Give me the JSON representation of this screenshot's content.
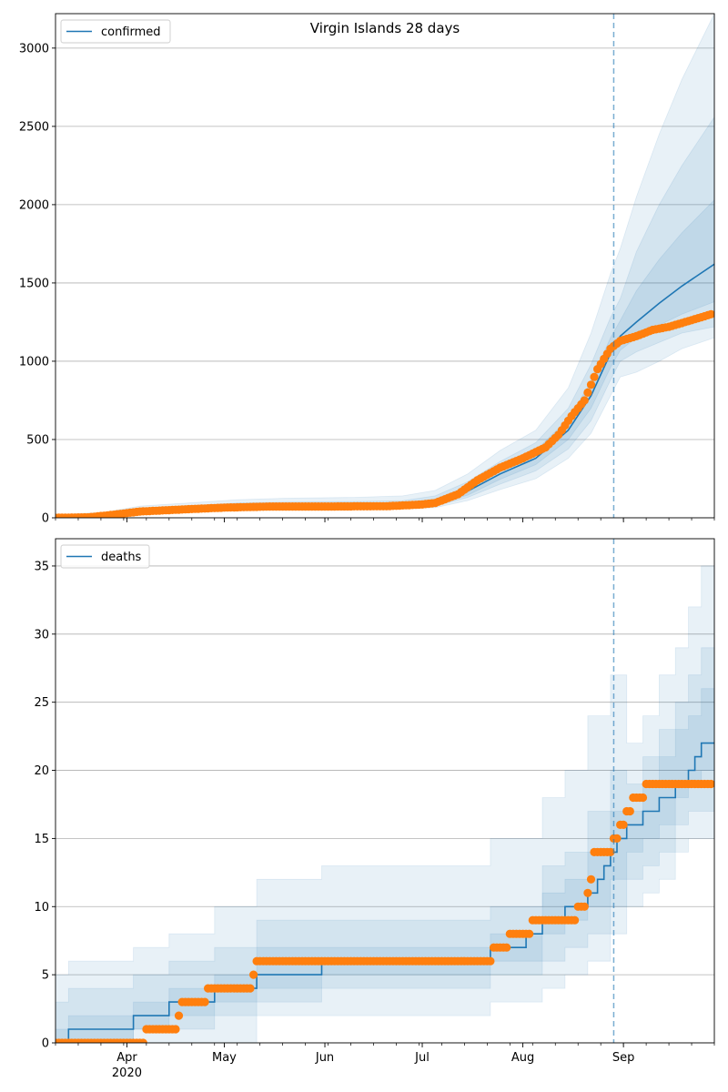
{
  "chart_data": [
    {
      "type": "line",
      "title": "Virgin Islands 28 days",
      "legend": "confirmed",
      "legend_placement": "top-left",
      "grid": "horizontal",
      "x_start": "2020-03-10",
      "x_end": "2020-09-29",
      "forecast_start": "2020-08-29",
      "ylim": [
        0,
        3220
      ],
      "yticks": [
        0,
        500,
        1000,
        1500,
        2000,
        2500,
        3000
      ],
      "model": [
        [
          "2020-03-10",
          0
        ],
        [
          "2020-03-25",
          10
        ],
        [
          "2020-04-05",
          40
        ],
        [
          "2020-04-20",
          55
        ],
        [
          "2020-05-05",
          70
        ],
        [
          "2020-05-20",
          76
        ],
        [
          "2020-06-10",
          78
        ],
        [
          "2020-06-25",
          82
        ],
        [
          "2020-07-05",
          100
        ],
        [
          "2020-07-15",
          170
        ],
        [
          "2020-07-25",
          280
        ],
        [
          "2020-08-05",
          380
        ],
        [
          "2020-08-15",
          560
        ],
        [
          "2020-08-22",
          780
        ],
        [
          "2020-08-28",
          1050
        ],
        [
          "2020-08-31",
          1160
        ],
        [
          "2020-09-05",
          1250
        ],
        [
          "2020-09-12",
          1370
        ],
        [
          "2020-09-19",
          1480
        ],
        [
          "2020-09-29",
          1620
        ]
      ],
      "bands": [
        [
          [
            "2020-03-10",
            0,
            20
          ],
          [
            "2020-03-25",
            5,
            35
          ],
          [
            "2020-04-05",
            20,
            75
          ],
          [
            "2020-04-20",
            35,
            95
          ],
          [
            "2020-05-05",
            45,
            115
          ],
          [
            "2020-05-20",
            50,
            125
          ],
          [
            "2020-06-10",
            52,
            130
          ],
          [
            "2020-06-25",
            55,
            140
          ],
          [
            "2020-07-05",
            65,
            175
          ],
          [
            "2020-07-15",
            110,
            280
          ],
          [
            "2020-07-25",
            180,
            430
          ],
          [
            "2020-08-05",
            250,
            560
          ],
          [
            "2020-08-15",
            380,
            830
          ],
          [
            "2020-08-22",
            540,
            1180
          ],
          [
            "2020-08-28",
            780,
            1560
          ],
          [
            "2020-08-31",
            900,
            1720
          ],
          [
            "2020-09-05",
            930,
            2050
          ],
          [
            "2020-09-12",
            1000,
            2450
          ],
          [
            "2020-09-19",
            1080,
            2800
          ],
          [
            "2020-09-29",
            1150,
            3220
          ]
        ],
        [
          [
            "2020-03-10",
            0,
            15
          ],
          [
            "2020-03-25",
            6,
            25
          ],
          [
            "2020-04-05",
            25,
            60
          ],
          [
            "2020-04-20",
            40,
            78
          ],
          [
            "2020-05-05",
            52,
            95
          ],
          [
            "2020-05-20",
            58,
            100
          ],
          [
            "2020-06-10",
            60,
            104
          ],
          [
            "2020-06-25",
            63,
            110
          ],
          [
            "2020-07-05",
            75,
            140
          ],
          [
            "2020-07-15",
            130,
            230
          ],
          [
            "2020-07-25",
            215,
            360
          ],
          [
            "2020-08-05",
            300,
            480
          ],
          [
            "2020-08-15",
            440,
            700
          ],
          [
            "2020-08-22",
            620,
            980
          ],
          [
            "2020-08-28",
            880,
            1280
          ],
          [
            "2020-08-31",
            1000,
            1400
          ],
          [
            "2020-09-05",
            1060,
            1700
          ],
          [
            "2020-09-12",
            1120,
            2000
          ],
          [
            "2020-09-19",
            1180,
            2250
          ],
          [
            "2020-09-29",
            1220,
            2560
          ]
        ],
        [
          [
            "2020-03-10",
            0,
            12
          ],
          [
            "2020-03-25",
            7,
            18
          ],
          [
            "2020-04-05",
            30,
            52
          ],
          [
            "2020-04-20",
            46,
            66
          ],
          [
            "2020-05-05",
            60,
            82
          ],
          [
            "2020-05-20",
            66,
            87
          ],
          [
            "2020-06-10",
            68,
            90
          ],
          [
            "2020-06-25",
            71,
            95
          ],
          [
            "2020-07-05",
            85,
            120
          ],
          [
            "2020-07-15",
            145,
            200
          ],
          [
            "2020-07-25",
            245,
            320
          ],
          [
            "2020-08-05",
            340,
            430
          ],
          [
            "2020-08-15",
            500,
            630
          ],
          [
            "2020-08-22",
            700,
            870
          ],
          [
            "2020-08-28",
            960,
            1150
          ],
          [
            "2020-08-31",
            1070,
            1260
          ],
          [
            "2020-09-05",
            1150,
            1450
          ],
          [
            "2020-09-12",
            1230,
            1650
          ],
          [
            "2020-09-19",
            1300,
            1820
          ],
          [
            "2020-09-29",
            1380,
            2030
          ]
        ]
      ],
      "observed": [
        [
          "2020-03-10",
          0
        ],
        [
          "2020-03-20",
          3
        ],
        [
          "2020-03-28",
          20
        ],
        [
          "2020-04-05",
          40
        ],
        [
          "2020-04-20",
          55
        ],
        [
          "2020-05-01",
          65
        ],
        [
          "2020-05-15",
          72
        ],
        [
          "2020-06-01",
          72
        ],
        [
          "2020-06-20",
          74
        ],
        [
          "2020-07-01",
          85
        ],
        [
          "2020-07-05",
          95
        ],
        [
          "2020-07-12",
          150
        ],
        [
          "2020-07-18",
          240
        ],
        [
          "2020-07-25",
          320
        ],
        [
          "2020-08-01",
          380
        ],
        [
          "2020-08-08",
          450
        ],
        [
          "2020-08-12",
          530
        ],
        [
          "2020-08-16",
          650
        ],
        [
          "2020-08-20",
          750
        ],
        [
          "2020-08-24",
          950
        ],
        [
          "2020-08-28",
          1080
        ],
        [
          "2020-08-31",
          1130
        ],
        [
          "2020-09-05",
          1160
        ],
        [
          "2020-09-10",
          1200
        ],
        [
          "2020-09-15",
          1220
        ],
        [
          "2020-09-20",
          1250
        ],
        [
          "2020-09-28",
          1300
        ]
      ]
    },
    {
      "type": "line",
      "title": "",
      "legend": "deaths",
      "legend_placement": "top-left",
      "grid": "horizontal",
      "x_start": "2020-03-10",
      "x_end": "2020-09-29",
      "forecast_start": "2020-08-29",
      "ylim": [
        0,
        37
      ],
      "yticks": [
        0,
        5,
        10,
        15,
        20,
        25,
        30,
        35
      ],
      "model_steps": [
        [
          "2020-03-10",
          0
        ],
        [
          "2020-03-14",
          1
        ],
        [
          "2020-04-03",
          2
        ],
        [
          "2020-04-14",
          3
        ],
        [
          "2020-04-28",
          4
        ],
        [
          "2020-05-11",
          5
        ],
        [
          "2020-05-31",
          6
        ],
        [
          "2020-07-22",
          7
        ],
        [
          "2020-08-02",
          8
        ],
        [
          "2020-08-07",
          9
        ],
        [
          "2020-08-14",
          10
        ],
        [
          "2020-08-21",
          11
        ],
        [
          "2020-08-24",
          12
        ],
        [
          "2020-08-26",
          13
        ],
        [
          "2020-08-28",
          14
        ],
        [
          "2020-08-30",
          15
        ],
        [
          "2020-09-02",
          16
        ],
        [
          "2020-09-07",
          17
        ],
        [
          "2020-09-12",
          18
        ],
        [
          "2020-09-17",
          19
        ],
        [
          "2020-09-21",
          20
        ],
        [
          "2020-09-23",
          21
        ],
        [
          "2020-09-25",
          22
        ]
      ],
      "bands": [
        [
          [
            "2020-03-10",
            0,
            5
          ],
          [
            "2020-03-14",
            0,
            6
          ],
          [
            "2020-04-03",
            0,
            7
          ],
          [
            "2020-04-14",
            0,
            8
          ],
          [
            "2020-04-28",
            0,
            10
          ],
          [
            "2020-05-11",
            2,
            12
          ],
          [
            "2020-05-31",
            2,
            13
          ],
          [
            "2020-07-22",
            3,
            15
          ],
          [
            "2020-08-07",
            4,
            18
          ],
          [
            "2020-08-14",
            5,
            20
          ],
          [
            "2020-08-21",
            6,
            24
          ],
          [
            "2020-08-28",
            8,
            27
          ],
          [
            "2020-09-02",
            10,
            22
          ],
          [
            "2020-09-07",
            11,
            24
          ],
          [
            "2020-09-12",
            12,
            27
          ],
          [
            "2020-09-17",
            14,
            29
          ],
          [
            "2020-09-21",
            15,
            32
          ],
          [
            "2020-09-25",
            15,
            35
          ],
          [
            "2020-09-29",
            15,
            37
          ]
        ],
        [
          [
            "2020-03-10",
            0,
            3
          ],
          [
            "2020-03-14",
            0,
            4
          ],
          [
            "2020-04-03",
            1,
            5
          ],
          [
            "2020-04-14",
            1,
            6
          ],
          [
            "2020-04-28",
            2,
            7
          ],
          [
            "2020-05-11",
            3,
            9
          ],
          [
            "2020-05-31",
            4,
            9
          ],
          [
            "2020-07-22",
            5,
            10
          ],
          [
            "2020-08-07",
            6,
            13
          ],
          [
            "2020-08-14",
            7,
            14
          ],
          [
            "2020-08-21",
            8,
            17
          ],
          [
            "2020-08-28",
            10,
            20
          ],
          [
            "2020-09-02",
            12,
            19
          ],
          [
            "2020-09-07",
            13,
            21
          ],
          [
            "2020-09-12",
            14,
            23
          ],
          [
            "2020-09-17",
            16,
            25
          ],
          [
            "2020-09-21",
            17,
            27
          ],
          [
            "2020-09-25",
            17,
            29
          ],
          [
            "2020-09-29",
            17,
            30
          ]
        ],
        [
          [
            "2020-03-10",
            0,
            1
          ],
          [
            "2020-03-14",
            0,
            2
          ],
          [
            "2020-04-03",
            1,
            3
          ],
          [
            "2020-04-14",
            2,
            4
          ],
          [
            "2020-04-28",
            3,
            5
          ],
          [
            "2020-05-11",
            4,
            7
          ],
          [
            "2020-05-31",
            5,
            7
          ],
          [
            "2020-07-22",
            6,
            8
          ],
          [
            "2020-08-07",
            8,
            11
          ],
          [
            "2020-08-14",
            9,
            12
          ],
          [
            "2020-08-21",
            10,
            14
          ],
          [
            "2020-08-28",
            12,
            17
          ],
          [
            "2020-09-02",
            14,
            17
          ],
          [
            "2020-09-07",
            15,
            19
          ],
          [
            "2020-09-12",
            16,
            21
          ],
          [
            "2020-09-17",
            18,
            23
          ],
          [
            "2020-09-21",
            19,
            24
          ],
          [
            "2020-09-25",
            20,
            26
          ],
          [
            "2020-09-29",
            20,
            26
          ]
        ]
      ],
      "observed_steps": [
        [
          "2020-03-10",
          0
        ],
        [
          "2020-04-07",
          1
        ],
        [
          "2020-04-17",
          2
        ],
        [
          "2020-04-18",
          3
        ],
        [
          "2020-04-26",
          4
        ],
        [
          "2020-05-10",
          5
        ],
        [
          "2020-05-11",
          6
        ],
        [
          "2020-07-23",
          7
        ],
        [
          "2020-07-28",
          8
        ],
        [
          "2020-08-04",
          9
        ],
        [
          "2020-08-18",
          10
        ],
        [
          "2020-08-21",
          11
        ],
        [
          "2020-08-22",
          12
        ],
        [
          "2020-08-23",
          14
        ],
        [
          "2020-08-29",
          15
        ],
        [
          "2020-08-31",
          16
        ],
        [
          "2020-09-02",
          17
        ],
        [
          "2020-09-04",
          18
        ],
        [
          "2020-09-08",
          19
        ]
      ],
      "observed_end": "2020-09-28"
    }
  ],
  "x_axis": {
    "tick_labels": [
      {
        "date": "2020-04-01",
        "text": "Apr"
      },
      {
        "date": "2020-05-01",
        "text": "May"
      },
      {
        "date": "2020-06-01",
        "text": "Jun"
      },
      {
        "date": "2020-07-01",
        "text": "Jul"
      },
      {
        "date": "2020-08-01",
        "text": "Aug"
      },
      {
        "date": "2020-09-01",
        "text": "Sep"
      }
    ],
    "year_label": "2020"
  },
  "colors": {
    "model": "#1f77b4",
    "observed": "#ff7f0e",
    "band": "#1f77b4",
    "grid": "#b0b0b0",
    "forecast_line": "#1f77b4"
  }
}
